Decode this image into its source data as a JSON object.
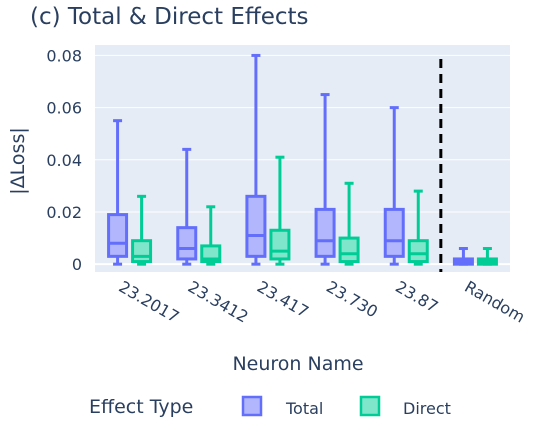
{
  "chart_data": {
    "type": "box",
    "title": "(c) Total & Direct Effects",
    "xlabel": "Neuron Name",
    "ylabel": "|ΔLoss|",
    "ylim": [
      -0.003,
      0.084
    ],
    "yticks": [
      0,
      0.02,
      0.04,
      0.06,
      0.08
    ],
    "ytick_labels": [
      "0",
      "0.02",
      "0.04",
      "0.06",
      "0.08"
    ],
    "categories": [
      "23.2017",
      "23.3412",
      "23.417",
      "23.730",
      "23.87",
      "Random"
    ],
    "separator_after_category": "23.87",
    "grid": true,
    "legend": {
      "title": "Effect Type",
      "placement": "bottom"
    },
    "series": [
      {
        "name": "Total",
        "color": "#636efa",
        "fill": "#b1b6fd",
        "boxes": [
          {
            "min": 0,
            "q1": 0.003,
            "median": 0.008,
            "q3": 0.019,
            "max": 0.055
          },
          {
            "min": 0,
            "q1": 0.002,
            "median": 0.006,
            "q3": 0.014,
            "max": 0.044
          },
          {
            "min": 0,
            "q1": 0.003,
            "median": 0.011,
            "q3": 0.026,
            "max": 0.08
          },
          {
            "min": 0,
            "q1": 0.003,
            "median": 0.009,
            "q3": 0.021,
            "max": 0.065
          },
          {
            "min": 0,
            "q1": 0.003,
            "median": 0.009,
            "q3": 0.021,
            "max": 0.06
          },
          {
            "min": 0,
            "q1": 0.0,
            "median": 0.001,
            "q3": 0.002,
            "max": 0.006
          }
        ]
      },
      {
        "name": "Direct",
        "color": "#00cc96",
        "fill": "#80e6cb",
        "boxes": [
          {
            "min": 0,
            "q1": 0.001,
            "median": 0.003,
            "q3": 0.009,
            "max": 0.026
          },
          {
            "min": 0,
            "q1": 0.001,
            "median": 0.002,
            "q3": 0.007,
            "max": 0.022
          },
          {
            "min": 0,
            "q1": 0.002,
            "median": 0.005,
            "q3": 0.013,
            "max": 0.041
          },
          {
            "min": 0,
            "q1": 0.001,
            "median": 0.004,
            "q3": 0.01,
            "max": 0.031
          },
          {
            "min": 0,
            "q1": 0.001,
            "median": 0.004,
            "q3": 0.009,
            "max": 0.028
          },
          {
            "min": 0,
            "q1": 0.0,
            "median": 0.001,
            "q3": 0.002,
            "max": 0.006
          }
        ]
      }
    ]
  }
}
